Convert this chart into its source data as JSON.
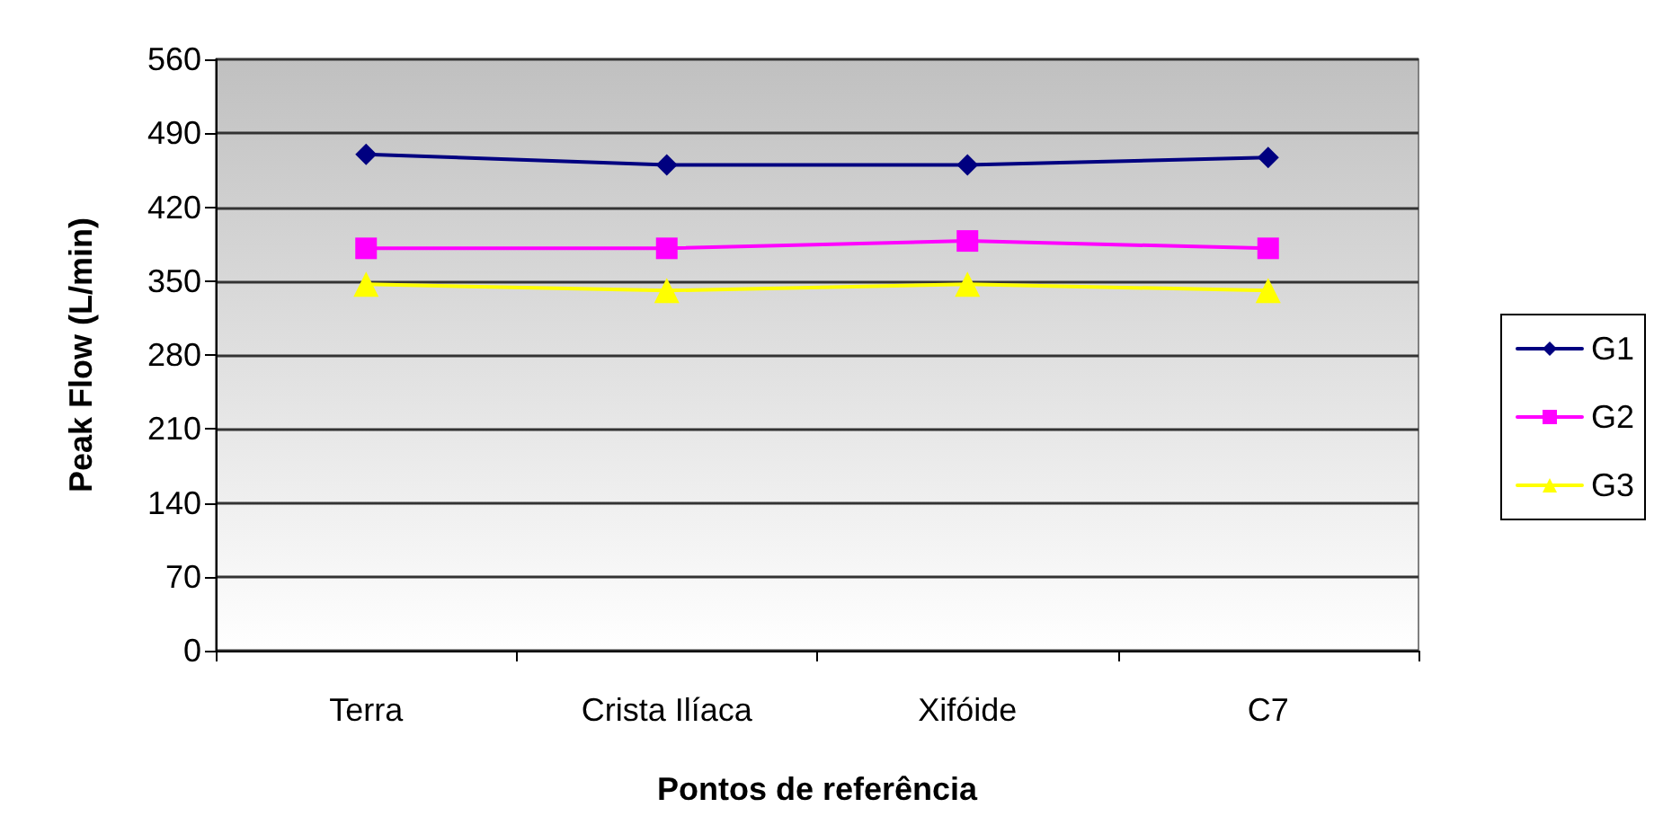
{
  "chart_data": {
    "type": "line",
    "xlabel": "Pontos de referência",
    "ylabel": "Peak Flow (L/min)",
    "categories": [
      "Terra",
      "Crista Ilíaca",
      "Xifóide",
      "C7"
    ],
    "series": [
      {
        "name": "G1",
        "color": "#000080",
        "marker": "diamond",
        "values": [
          470,
          460,
          460,
          467
        ]
      },
      {
        "name": "G2",
        "color": "#ff00ff",
        "marker": "square",
        "values": [
          381,
          381,
          388,
          381
        ]
      },
      {
        "name": "G3",
        "color": "#ffff00",
        "marker": "triangle",
        "values": [
          347,
          341,
          347,
          341
        ]
      }
    ],
    "ylim": [
      0,
      560
    ],
    "yticks": [
      0,
      70,
      140,
      210,
      280,
      350,
      420,
      490,
      560
    ],
    "grid": "y",
    "legend": "right",
    "line_style": "solid"
  }
}
